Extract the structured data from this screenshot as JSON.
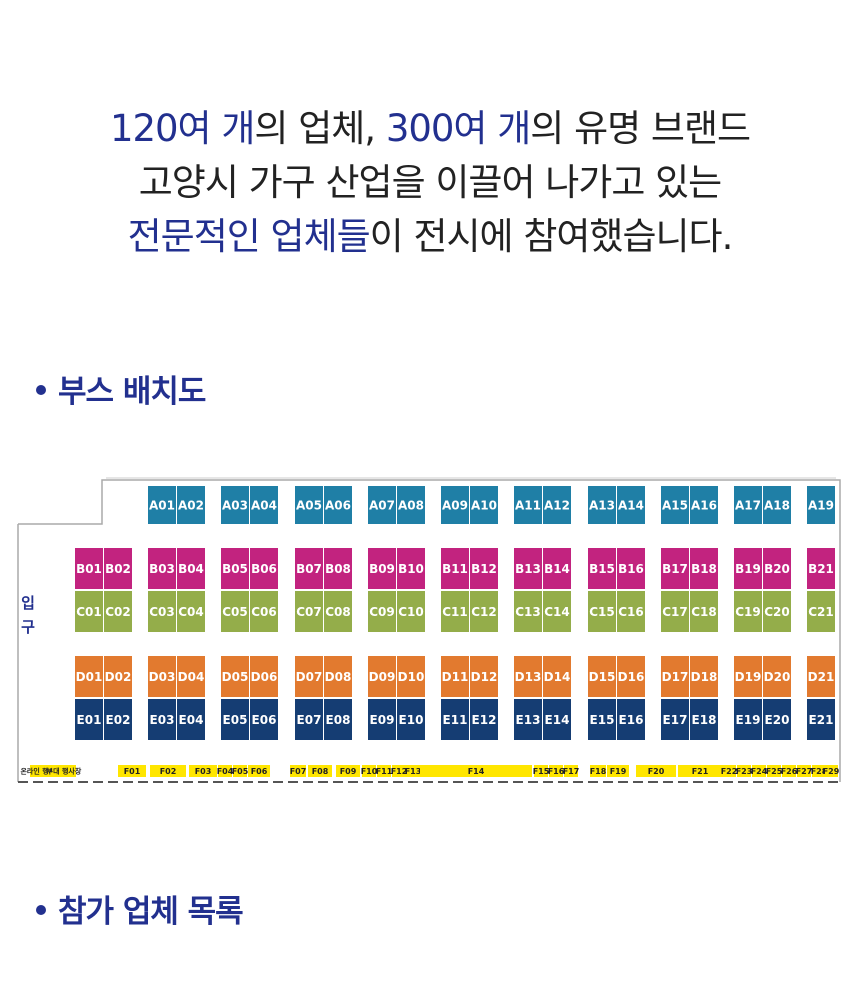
{
  "intro": {
    "line1": {
      "a": "120여 개",
      "b": "의 업체, ",
      "c": "300여 개",
      "d": "의 유명 브랜드"
    },
    "line2": "고양시 가구 산업을 이끌어 나가고 있는",
    "line3": {
      "a": "전문적인 업체들",
      "b": "이 전시에 참여했습니다."
    }
  },
  "sections": {
    "layout_title": "부스 배치도",
    "list_title": "참가 업체 목록"
  },
  "floorplan": {
    "entrance": [
      "입",
      "구"
    ],
    "colors": {
      "A": "#1f7fa6",
      "B": "#c2237f",
      "C": "#94ad4a",
      "D": "#e27a2f",
      "E": "#153d73",
      "F": "#ffe600",
      "heading": "#22308f"
    },
    "A": [
      "A01",
      "A02",
      "A03",
      "A04",
      "A05",
      "A06",
      "A07",
      "A08",
      "A09",
      "A10",
      "A11",
      "A12",
      "A13",
      "A14",
      "A15",
      "A16",
      "A17",
      "A18",
      "A19"
    ],
    "B": [
      "B01",
      "B02",
      "B03",
      "B04",
      "B05",
      "B06",
      "B07",
      "B08",
      "B09",
      "B10",
      "B11",
      "B12",
      "B13",
      "B14",
      "B15",
      "B16",
      "B17",
      "B18",
      "B19",
      "B20",
      "B21"
    ],
    "C": [
      "C01",
      "C02",
      "C03",
      "C04",
      "C05",
      "C06",
      "C07",
      "C08",
      "C09",
      "C10",
      "C11",
      "C12",
      "C13",
      "C14",
      "C15",
      "C16",
      "C17",
      "C18",
      "C19",
      "C20",
      "C21"
    ],
    "D": [
      "D01",
      "D02",
      "D03",
      "D04",
      "D05",
      "D06",
      "D07",
      "D08",
      "D09",
      "D10",
      "D11",
      "D12",
      "D13",
      "D14",
      "D15",
      "D16",
      "D17",
      "D18",
      "D19",
      "D20",
      "D21"
    ],
    "E": [
      "E01",
      "E02",
      "E03",
      "E04",
      "E05",
      "E06",
      "E07",
      "E08",
      "E09",
      "E10",
      "E11",
      "E12",
      "E13",
      "E14",
      "E15",
      "E16",
      "E17",
      "E18",
      "E19",
      "E20",
      "E21"
    ],
    "F": [
      "온라인 행사장",
      "부대 행사장",
      "F01",
      "F02",
      "F03",
      "F04",
      "F05",
      "F06",
      "F07",
      "F08",
      "F09",
      "F10",
      "F11",
      "F12",
      "F13",
      "F14",
      "F15",
      "F16",
      "F17",
      "F18",
      "F19",
      "F20",
      "F21",
      "F22",
      "F23",
      "F24",
      "F25",
      "F26",
      "F27",
      "F28",
      "F29"
    ]
  }
}
